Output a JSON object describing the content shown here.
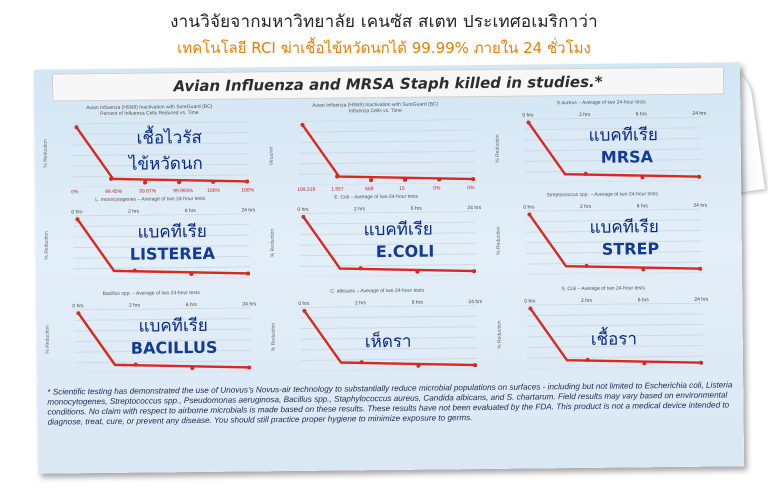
{
  "header": {
    "line1": "งานวิจัยจากมหาวิทยาลัย เคนซัส สเตท ประเทศอเมริกาว่า",
    "line2": "เทคโนโลยี RCI ฆ่าเชื้อไข้หวัดนกได้ 99.99% ภายใน 24 ชั่วโมง"
  },
  "banner": "Avian Influenza and MRSA Staph killed in studies.*",
  "panels": [
    {
      "title": "Avian Influenza (H5N9) Inactivation with SureGuard (BC)",
      "subtitle": "Percent of Influenza Cells Reduced vs. Time",
      "thai": "เชื้อไวรัส",
      "thai2": "ไข้หวัดนก",
      "ticks": [
        "0%",
        "99.45%",
        "99.87%",
        "99.993%",
        "100%",
        "100%"
      ]
    },
    {
      "title": "Avian Influenza (H5N9) Inactivation with SureGuard (BC)",
      "subtitle": "Influenza Cells vs. Time",
      "thai": "",
      "thai2": "",
      "ticks": [
        "199,318",
        "1,557",
        "668",
        "15",
        "0%",
        "0%"
      ]
    },
    {
      "title": "S.aureus – Average of two 24-hour tests",
      "subtitle": "",
      "thai": "แบคทีเรีย",
      "eng": "MRSA",
      "ticks": [
        "0 hrs",
        "2 hrs",
        "6 hrs",
        "24 hrs"
      ]
    },
    {
      "title": "L. monocytogenes – Average of two 24-hour tests",
      "subtitle": "",
      "thai": "แบคทีเรีย",
      "eng": "LISTEREA",
      "ticks": [
        "0 hrs",
        "2 hrs",
        "6 hrs",
        "24 hrs"
      ]
    },
    {
      "title": "E. Coli – Average of two 24-hour tests",
      "subtitle": "",
      "thai": "แบคทีเรีย",
      "eng": "E.COLI",
      "ticks": [
        "0 hrs",
        "2 hrs",
        "6 hrs",
        "24 hrs"
      ]
    },
    {
      "title": "Streptococcus spp. – Average of two 24-hour tests",
      "subtitle": "",
      "thai": "แบคทีเรีย",
      "eng": "STREP",
      "ticks": [
        "0 hrs",
        "2 hrs",
        "6 hrs",
        "24 hrs"
      ]
    },
    {
      "title": "Bacillus spp. – Average of two 24-hour tests",
      "subtitle": "",
      "thai": "แบคทีเรีย",
      "eng": "BACILLUS",
      "ticks": [
        "0 hrs",
        "2 hrs",
        "6 hrs",
        "24 hrs"
      ]
    },
    {
      "title": "C. albicans – Average of two 24-hour tests",
      "subtitle": "",
      "thai": "เห็ดรา",
      "eng": "",
      "ticks": [
        "0 hrs",
        "2 hrs",
        "6 hrs",
        "24 hrs"
      ]
    },
    {
      "title": "S. Coli – Average of two 24-hour tests",
      "subtitle": "",
      "thai": "เชื้อรา",
      "eng": "",
      "ticks": [
        "0 hrs",
        "2 hrs",
        "6 hrs",
        "24 hrs"
      ]
    }
  ],
  "ylabel_pct": "% Reduction",
  "ylabel_count": "Virus/ml",
  "footnote": "* Scientific testing has demonstrated the use of Unovus's Novus-air technology to substantially reduce microbial populations on surfaces - including but not limited to Escherichia coli, Listeria monocytogenes, Streptococcus spp., Pseudomonas aeruginosa, Bacillus spp., Staphylococcus aureus, Candida albicans, and S. chartarum. Field results may vary based on environmental conditions. No claim with respect to airborne microbials is made based on these results. These results have not been evaluated by the FDA. This product is not a medical device intended to diagnose, treat, cure, or prevent any disease. You should still practice proper hygiene to minimize exposure to germs.",
  "colors": {
    "line": "#d9281e",
    "accent": "#f07d00",
    "thai_label": "#0a2a8c"
  }
}
